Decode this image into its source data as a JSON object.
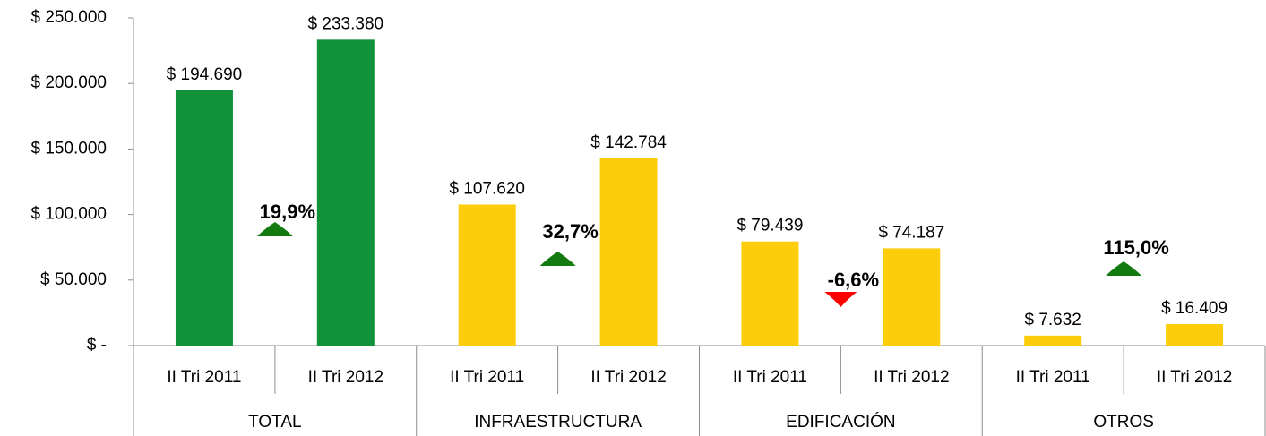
{
  "chart_data": {
    "type": "bar",
    "groups": [
      "TOTAL",
      "INFRAESTRUCTURA",
      "EDIFICACIÓN",
      "OTROS"
    ],
    "categories": [
      "II Tri 2011",
      "II Tri 2012",
      "II Tri 2011",
      "II Tri 2012",
      "II Tri 2011",
      "II Tri 2012",
      "II Tri 2011",
      "II Tri 2012"
    ],
    "values": [
      194690,
      233380,
      107620,
      142784,
      79439,
      74187,
      7632,
      16409
    ],
    "value_labels": [
      "$ 194.690",
      "$ 233.380",
      "$ 107.620",
      "$ 142.784",
      "$ 79.439",
      "$ 74.187",
      "$ 7.632",
      "$ 16.409"
    ],
    "colors": [
      "#10923a",
      "#10923a",
      "#fdcd0b",
      "#fdcd0b",
      "#fdcd0b",
      "#fdcd0b",
      "#fdcd0b",
      "#fdcd0b"
    ],
    "ylim": [
      0,
      250000
    ],
    "yticks": [
      {
        "value": 0,
        "label": "$ -"
      },
      {
        "value": 50000,
        "label": "$ 50.000"
      },
      {
        "value": 100000,
        "label": "$ 100.000"
      },
      {
        "value": 150000,
        "label": "$ 150.000"
      },
      {
        "value": 200000,
        "label": "$ 200.000"
      },
      {
        "value": 250000,
        "label": "$ 250.000"
      }
    ],
    "annotations": [
      {
        "text": "19,9%",
        "direction": "up",
        "color": "#137a10"
      },
      {
        "text": "32,7%",
        "direction": "up",
        "color": "#137a10"
      },
      {
        "text": "-6,6%",
        "direction": "down",
        "color": "#ff0000"
      },
      {
        "text": "115,0%",
        "direction": "up",
        "color": "#137a10"
      }
    ]
  }
}
